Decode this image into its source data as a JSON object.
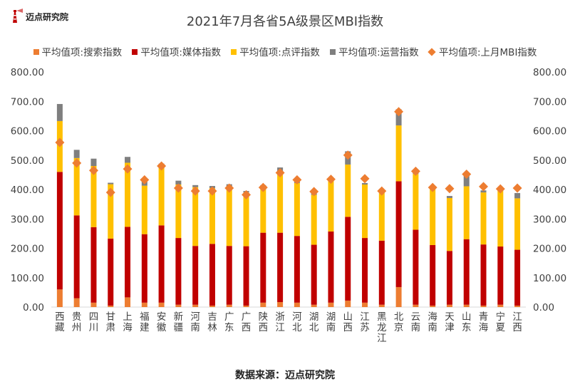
{
  "brand": {
    "name": "迈点研究院"
  },
  "source": "数据来源：迈点研究院",
  "colors": {
    "search": "#ED7D31",
    "media": "#C00000",
    "review": "#FFC000",
    "operation": "#7F7F7F",
    "last_month": "#ED7D31",
    "brand": "#C00000"
  },
  "chart_data": {
    "type": "bar",
    "stacked": true,
    "title": "2021年7月各省5A级景区MBI指数",
    "ylim": [
      0,
      800
    ],
    "yticks": [
      "0.00",
      "100.00",
      "200.00",
      "300.00",
      "400.00",
      "500.00",
      "600.00",
      "700.00",
      "800.00"
    ],
    "categories": [
      "西藏",
      "贵州",
      "四川",
      "甘肃",
      "上海",
      "福建",
      "安徽",
      "新疆",
      "河南",
      "吉林",
      "广东",
      "广西",
      "陕西",
      "浙江",
      "河北",
      "湖北",
      "湖南",
      "山西",
      "江苏",
      "黑龙江",
      "北京",
      "云南",
      "海南",
      "天津",
      "山东",
      "青海",
      "宁夏",
      "江西"
    ],
    "series": [
      {
        "name": "平均值项:搜索指数",
        "key": "search",
        "values": [
          60,
          30,
          15,
          5,
          33,
          15,
          15,
          8,
          8,
          5,
          8,
          5,
          15,
          17,
          15,
          8,
          15,
          22,
          15,
          8,
          68,
          8,
          5,
          8,
          8,
          5,
          8,
          5
        ]
      },
      {
        "name": "平均值项:媒体指数",
        "key": "media",
        "values": [
          400,
          282,
          257,
          228,
          240,
          233,
          263,
          227,
          200,
          210,
          200,
          202,
          238,
          236,
          227,
          204,
          242,
          285,
          220,
          218,
          360,
          255,
          206,
          183,
          223,
          208,
          198,
          190
        ]
      },
      {
        "name": "平均值项:点评指数",
        "key": "review",
        "values": [
          173,
          195,
          208,
          185,
          218,
          165,
          195,
          182,
          200,
          190,
          200,
          183,
          160,
          210,
          180,
          170,
          175,
          178,
          182,
          168,
          190,
          190,
          192,
          180,
          180,
          177,
          192,
          175
        ]
      },
      {
        "name": "平均值项:运营指数",
        "key": "operation",
        "values": [
          58,
          28,
          25,
          5,
          20,
          20,
          15,
          13,
          7,
          7,
          10,
          5,
          2,
          12,
          10,
          8,
          5,
          45,
          5,
          7,
          55,
          10,
          5,
          7,
          35,
          7,
          5,
          18
        ]
      }
    ],
    "markers": {
      "name": "平均值项:上月MBI指数",
      "key": "last_month",
      "values": [
        560,
        490,
        465,
        390,
        470,
        433,
        480,
        405,
        395,
        395,
        405,
        382,
        407,
        457,
        433,
        393,
        435,
        517,
        437,
        395,
        665,
        462,
        407,
        403,
        452,
        410,
        402,
        405
      ]
    }
  }
}
